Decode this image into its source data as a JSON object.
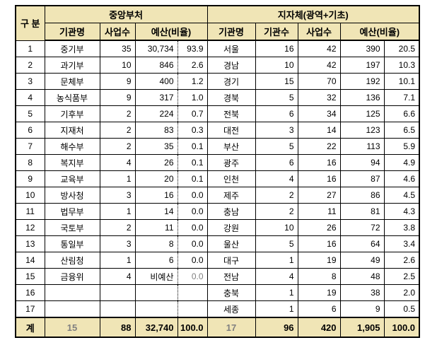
{
  "colors": {
    "header_bg": "#F0E5B6",
    "muted_text": "#808080",
    "border": "#000000"
  },
  "table": {
    "corner_header": "구 분",
    "central": {
      "title": "중앙부처",
      "columns": [
        "기관명",
        "사업수",
        "예산(비율)"
      ]
    },
    "local": {
      "title": "지자체(광역+기초)",
      "columns": [
        "기관명",
        "기관수",
        "사업수",
        "예산(비율)"
      ]
    },
    "rows": [
      {
        "no": "1",
        "ministry": "중기부",
        "ministry_projects": "35",
        "ministry_budget": "30,734",
        "ministry_ratio": "93.9",
        "region": "서울",
        "region_orgs": "16",
        "region_projects": "42",
        "region_budget": "390",
        "region_ratio": "20.5"
      },
      {
        "no": "2",
        "ministry": "과기부",
        "ministry_projects": "10",
        "ministry_budget": "846",
        "ministry_ratio": "2.6",
        "region": "경남",
        "region_orgs": "10",
        "region_projects": "42",
        "region_budget": "197",
        "region_ratio": "10.3"
      },
      {
        "no": "3",
        "ministry": "문체부",
        "ministry_projects": "9",
        "ministry_budget": "400",
        "ministry_ratio": "1.2",
        "region": "경기",
        "region_orgs": "15",
        "region_projects": "70",
        "region_budget": "192",
        "region_ratio": "10.1"
      },
      {
        "no": "4",
        "ministry": "농식품부",
        "ministry_projects": "9",
        "ministry_budget": "317",
        "ministry_ratio": "1.0",
        "region": "경북",
        "region_orgs": "5",
        "region_projects": "32",
        "region_budget": "136",
        "region_ratio": "7.1"
      },
      {
        "no": "5",
        "ministry": "기후부",
        "ministry_projects": "2",
        "ministry_budget": "224",
        "ministry_ratio": "0.7",
        "region": "전북",
        "region_orgs": "6",
        "region_projects": "34",
        "region_budget": "125",
        "region_ratio": "6.6"
      },
      {
        "no": "6",
        "ministry": "지재처",
        "ministry_projects": "2",
        "ministry_budget": "83",
        "ministry_ratio": "0.3",
        "region": "대전",
        "region_orgs": "3",
        "region_projects": "14",
        "region_budget": "123",
        "region_ratio": "6.5"
      },
      {
        "no": "7",
        "ministry": "해수부",
        "ministry_projects": "2",
        "ministry_budget": "35",
        "ministry_ratio": "0.1",
        "region": "부산",
        "region_orgs": "5",
        "region_projects": "22",
        "region_budget": "113",
        "region_ratio": "5.9"
      },
      {
        "no": "8",
        "ministry": "복지부",
        "ministry_projects": "4",
        "ministry_budget": "26",
        "ministry_ratio": "0.1",
        "region": "광주",
        "region_orgs": "6",
        "region_projects": "16",
        "region_budget": "94",
        "region_ratio": "4.9"
      },
      {
        "no": "9",
        "ministry": "교육부",
        "ministry_projects": "1",
        "ministry_budget": "20",
        "ministry_ratio": "0.1",
        "region": "인천",
        "region_orgs": "4",
        "region_projects": "16",
        "region_budget": "87",
        "region_ratio": "4.6"
      },
      {
        "no": "10",
        "ministry": "방사청",
        "ministry_projects": "3",
        "ministry_budget": "16",
        "ministry_ratio": "0.0",
        "region": "제주",
        "region_orgs": "2",
        "region_projects": "27",
        "region_budget": "86",
        "region_ratio": "4.5"
      },
      {
        "no": "11",
        "ministry": "법무부",
        "ministry_projects": "1",
        "ministry_budget": "14",
        "ministry_ratio": "0.0",
        "region": "충남",
        "region_orgs": "2",
        "region_projects": "11",
        "region_budget": "81",
        "region_ratio": "4.3"
      },
      {
        "no": "12",
        "ministry": "국토부",
        "ministry_projects": "2",
        "ministry_budget": "11",
        "ministry_ratio": "0.0",
        "region": "강원",
        "region_orgs": "10",
        "region_projects": "26",
        "region_budget": "72",
        "region_ratio": "3.8"
      },
      {
        "no": "13",
        "ministry": "통일부",
        "ministry_projects": "3",
        "ministry_budget": "8",
        "ministry_ratio": "0.0",
        "region": "울산",
        "region_orgs": "5",
        "region_projects": "16",
        "region_budget": "64",
        "region_ratio": "3.4"
      },
      {
        "no": "14",
        "ministry": "산림청",
        "ministry_projects": "1",
        "ministry_budget": "6",
        "ministry_ratio": "0.0",
        "region": "대구",
        "region_orgs": "1",
        "region_projects": "19",
        "region_budget": "49",
        "region_ratio": "2.6"
      },
      {
        "no": "15",
        "ministry": "금융위",
        "ministry_projects": "4",
        "ministry_budget": "비예산",
        "ministry_ratio": "0.0",
        "region": "전남",
        "region_orgs": "4",
        "region_projects": "8",
        "region_budget": "48",
        "region_ratio": "2.5",
        "muted": [
          "ministry_ratio"
        ]
      },
      {
        "no": "16",
        "ministry": "",
        "ministry_projects": "",
        "ministry_budget": "",
        "ministry_ratio": "",
        "region": "충북",
        "region_orgs": "1",
        "region_projects": "19",
        "region_budget": "38",
        "region_ratio": "2.0"
      },
      {
        "no": "17",
        "ministry": "",
        "ministry_projects": "",
        "ministry_budget": "",
        "ministry_ratio": "",
        "region": "세종",
        "region_orgs": "1",
        "region_projects": "6",
        "region_budget": "9",
        "region_ratio": "0.5"
      }
    ],
    "total": {
      "label": "계",
      "ministry_count": "15",
      "ministry_projects": "88",
      "ministry_budget": "32,740",
      "ministry_ratio": "100.0",
      "region_count": "17",
      "region_orgs": "96",
      "region_projects": "420",
      "region_budget": "1,905",
      "region_ratio": "100.0"
    }
  }
}
